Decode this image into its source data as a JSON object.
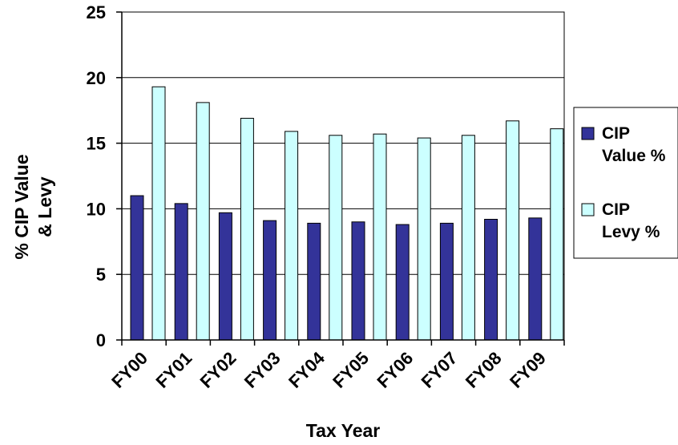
{
  "chart_data": {
    "type": "bar",
    "categories": [
      "FY00",
      "FY01",
      "FY02",
      "FY03",
      "FY04",
      "FY05",
      "FY06",
      "FY07",
      "FY08",
      "FY09"
    ],
    "series": [
      {
        "name": "CIP Value %",
        "legend_lines": [
          "CIP",
          "Value %"
        ],
        "color": "#333399",
        "values": [
          11.0,
          10.4,
          9.7,
          9.1,
          8.9,
          9.0,
          8.8,
          8.9,
          9.2,
          9.3
        ]
      },
      {
        "name": "CIP Levy %",
        "legend_lines": [
          "CIP",
          "Levy %"
        ],
        "color": "#ccffff",
        "values": [
          19.3,
          18.1,
          16.9,
          15.9,
          15.6,
          15.7,
          15.4,
          15.6,
          16.7,
          16.1
        ]
      }
    ],
    "ylim": [
      0,
      25
    ],
    "yticks": [
      0,
      5,
      10,
      15,
      20,
      25
    ],
    "xlabel": "Tax Year",
    "ylabel_lines": [
      "% CIP Value",
      "& Levy"
    ],
    "grid": true,
    "legend_position": "right"
  }
}
